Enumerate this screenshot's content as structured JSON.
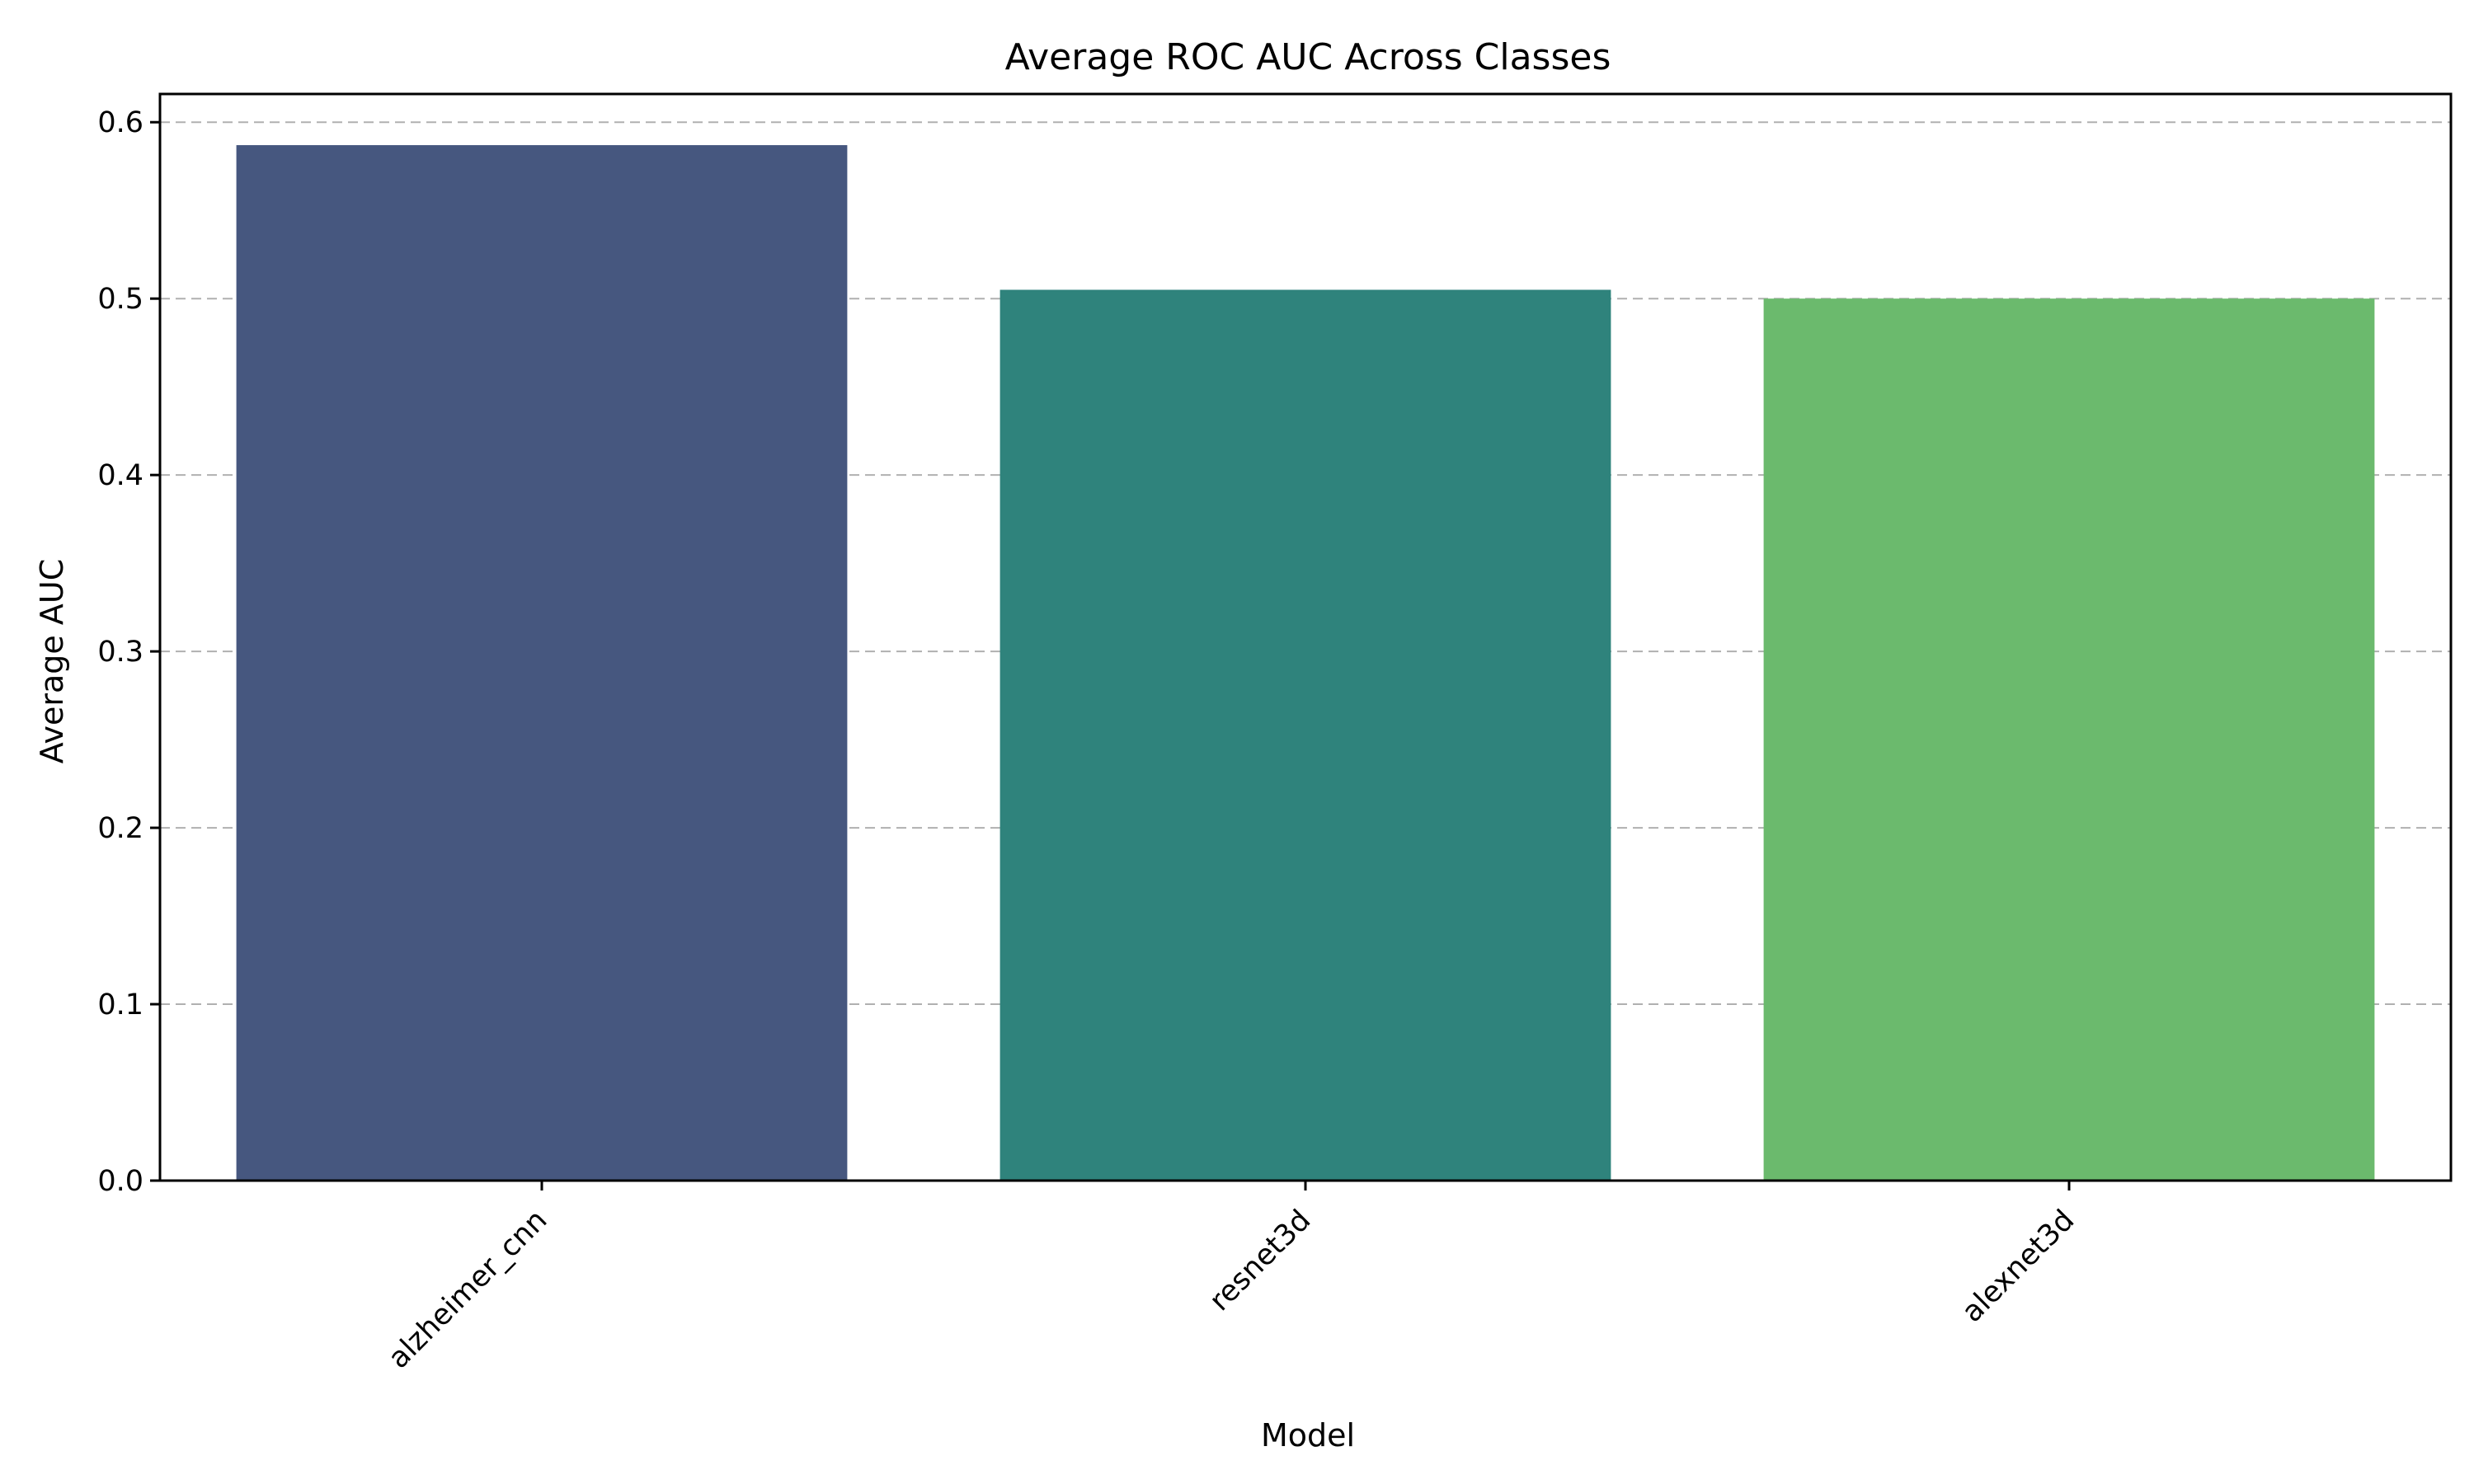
{
  "chart_data": {
    "type": "bar",
    "title": "Average ROC AUC Across Classes",
    "xlabel": "Model",
    "ylabel": "Average AUC",
    "categories": [
      "alzheimer_cnn",
      "resnet3d",
      "alexnet3d"
    ],
    "values": [
      0.587,
      0.505,
      0.5
    ],
    "colors": [
      "#46577f",
      "#2f837c",
      "#6bba6d"
    ],
    "ylim": [
      0,
      0.616
    ],
    "yticks": [
      0.0,
      0.1,
      0.2,
      0.3,
      0.4,
      0.5,
      0.6
    ],
    "ytick_labels": [
      "0.0",
      "0.1",
      "0.2",
      "0.3",
      "0.4",
      "0.5",
      "0.6"
    ],
    "grid": {
      "axis": "y",
      "style": "dashed"
    },
    "legend": "none"
  }
}
